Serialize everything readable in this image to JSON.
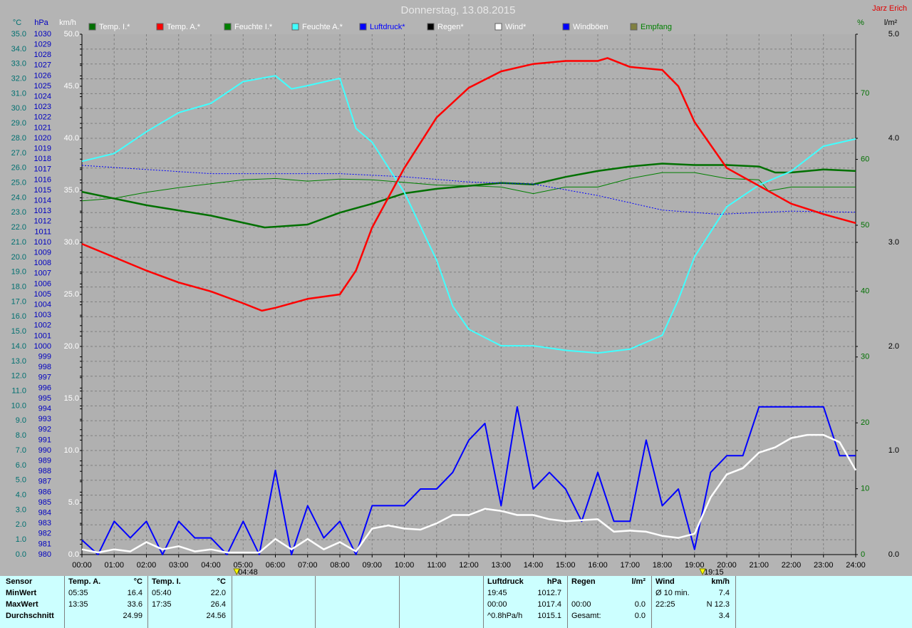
{
  "chart_data": {
    "type": "line",
    "title": "Donnerstag, 13.08.2015",
    "author": "Jarz Erich",
    "xlim": [
      0,
      24
    ],
    "xticks": [
      {
        "value": 0,
        "label": "00:00"
      },
      {
        "value": 1,
        "label": "01:00"
      },
      {
        "value": 2,
        "label": "02:00"
      },
      {
        "value": 3,
        "label": "03:00"
      },
      {
        "value": 4,
        "label": "04:00"
      },
      {
        "value": 5,
        "label": "05:00"
      },
      {
        "value": 6,
        "label": "06:00"
      },
      {
        "value": 7,
        "label": "07:00"
      },
      {
        "value": 8,
        "label": "08:00"
      },
      {
        "value": 9,
        "label": "09:00"
      },
      {
        "value": 10,
        "label": "10:00"
      },
      {
        "value": 11,
        "label": "11:00"
      },
      {
        "value": 12,
        "label": "12:00"
      },
      {
        "value": 13,
        "label": "13:00"
      },
      {
        "value": 14,
        "label": "14:00"
      },
      {
        "value": 15,
        "label": "15:00"
      },
      {
        "value": 16,
        "label": "16:00"
      },
      {
        "value": 17,
        "label": "17:00"
      },
      {
        "value": 18,
        "label": "18:00"
      },
      {
        "value": 19,
        "label": "19:00"
      },
      {
        "value": 20,
        "label": "20:00"
      },
      {
        "value": 21,
        "label": "21:00"
      },
      {
        "value": 22,
        "label": "22:00"
      },
      {
        "value": 23,
        "label": "23:00"
      },
      {
        "value": 24,
        "label": "24:00"
      }
    ],
    "sun_markers": [
      {
        "value": 4.8,
        "label": "04:48"
      },
      {
        "value": 19.25,
        "label": "19:15"
      }
    ],
    "grid": true,
    "axes": {
      "temp": {
        "label": "°C",
        "side": "left",
        "color": "#007070",
        "lim": [
          0,
          35
        ],
        "ticks": [
          {
            "value": 0,
            "label": "0.0"
          },
          {
            "value": 1,
            "label": "1.0"
          },
          {
            "value": 2,
            "label": "2.0"
          },
          {
            "value": 3,
            "label": "3.0"
          },
          {
            "value": 4,
            "label": "4.0"
          },
          {
            "value": 5,
            "label": "5.0"
          },
          {
            "value": 6,
            "label": "6.0"
          },
          {
            "value": 7,
            "label": "7.0"
          },
          {
            "value": 8,
            "label": "8.0"
          },
          {
            "value": 9,
            "label": "9.0"
          },
          {
            "value": 10,
            "label": "10.0"
          },
          {
            "value": 11,
            "label": "11.0"
          },
          {
            "value": 12,
            "label": "12.0"
          },
          {
            "value": 13,
            "label": "13.0"
          },
          {
            "value": 14,
            "label": "14.0"
          },
          {
            "value": 15,
            "label": "15.0"
          },
          {
            "value": 16,
            "label": "16.0"
          },
          {
            "value": 17,
            "label": "17.0"
          },
          {
            "value": 18,
            "label": "18.0"
          },
          {
            "value": 19,
            "label": "19.0"
          },
          {
            "value": 20,
            "label": "20.0"
          },
          {
            "value": 21,
            "label": "21.0"
          },
          {
            "value": 22,
            "label": "22.0"
          },
          {
            "value": 23,
            "label": "23.0"
          },
          {
            "value": 24,
            "label": "24.0"
          },
          {
            "value": 25,
            "label": "25.0"
          },
          {
            "value": 26,
            "label": "26.0"
          },
          {
            "value": 27,
            "label": "27.0"
          },
          {
            "value": 28,
            "label": "28.0"
          },
          {
            "value": 29,
            "label": "29.0"
          },
          {
            "value": 30,
            "label": "30.0"
          },
          {
            "value": 31,
            "label": "31.0"
          },
          {
            "value": 32,
            "label": "32.0"
          },
          {
            "value": 33,
            "label": "33.0"
          },
          {
            "value": 34,
            "label": "34.0"
          },
          {
            "value": 35,
            "label": "35.0"
          }
        ]
      },
      "hpa": {
        "label": "hPa",
        "side": "left",
        "color": "#0000c0",
        "lim": [
          980,
          1030
        ],
        "ticks": [
          980,
          981,
          982,
          983,
          984,
          985,
          986,
          987,
          988,
          989,
          990,
          991,
          992,
          993,
          994,
          995,
          996,
          997,
          998,
          999,
          1000,
          1001,
          1002,
          1003,
          1004,
          1005,
          1006,
          1007,
          1008,
          1009,
          1010,
          1011,
          1012,
          1013,
          1014,
          1015,
          1016,
          1017,
          1018,
          1019,
          1020,
          1021,
          1022,
          1023,
          1024,
          1025,
          1026,
          1027,
          1028,
          1029,
          1030
        ]
      },
      "wind": {
        "label": "km/h",
        "side": "left",
        "color": "#ffffff",
        "lim": [
          0,
          50
        ],
        "ticks": [
          {
            "value": 0,
            "label": "0.0"
          },
          {
            "value": 5,
            "label": "5.0"
          },
          {
            "value": 10,
            "label": "10.0"
          },
          {
            "value": 15,
            "label": "15.0"
          },
          {
            "value": 20,
            "label": "20.0"
          },
          {
            "value": 25,
            "label": "25.0"
          },
          {
            "value": 30,
            "label": "30.0"
          },
          {
            "value": 35,
            "label": "35.0"
          },
          {
            "value": 40,
            "label": "40.0"
          },
          {
            "value": 45,
            "label": "45.0"
          },
          {
            "value": 50,
            "label": "50.0"
          }
        ]
      },
      "hum": {
        "label": "%",
        "side": "right",
        "color": "#007000",
        "lim": [
          0,
          79
        ],
        "ticks": [
          0,
          10,
          20,
          30,
          40,
          50,
          60,
          70
        ]
      },
      "rain": {
        "label": "l/m²",
        "side": "right",
        "color": "#000000",
        "lim": [
          0,
          5
        ],
        "ticks": [
          {
            "value": 0,
            "label": "0.0"
          },
          {
            "value": 1,
            "label": "1.0"
          },
          {
            "value": 2,
            "label": "2.0"
          },
          {
            "value": 3,
            "label": "3.0"
          },
          {
            "value": 4,
            "label": "4.0"
          },
          {
            "value": 5,
            "label": "5.0"
          }
        ]
      }
    },
    "series": [
      {
        "name": "Temp. I.*",
        "color": "#007000",
        "axis": "temp",
        "width": 2.5,
        "x": [
          0,
          2,
          4,
          5.67,
          7,
          8,
          9,
          10,
          11,
          12,
          13,
          14,
          15,
          16,
          17,
          18,
          19,
          20,
          21,
          21.5,
          22,
          23,
          24
        ],
        "values": [
          24.4,
          23.5,
          22.8,
          22.0,
          22.2,
          23.0,
          23.6,
          24.3,
          24.6,
          24.8,
          25.0,
          24.9,
          25.4,
          25.8,
          26.1,
          26.3,
          26.2,
          26.2,
          26.1,
          25.7,
          25.7,
          25.9,
          25.8
        ]
      },
      {
        "name": "Temp. A.*",
        "color": "#ff0000",
        "axis": "temp",
        "width": 2.5,
        "x": [
          0,
          1,
          2,
          3,
          4,
          5,
          5.58,
          6,
          7,
          8,
          8.5,
          9,
          10,
          11,
          12,
          13,
          14,
          15,
          16,
          16.3,
          17,
          18,
          18.5,
          19,
          20,
          21,
          22,
          23,
          24
        ],
        "values": [
          20.9,
          20.0,
          19.1,
          18.3,
          17.7,
          16.9,
          16.4,
          16.6,
          17.2,
          17.5,
          19.1,
          22.0,
          26.0,
          29.4,
          31.4,
          32.5,
          33.0,
          33.2,
          33.2,
          33.4,
          32.8,
          32.6,
          31.5,
          29.1,
          26.0,
          24.8,
          23.6,
          22.9,
          22.3
        ]
      },
      {
        "name": "Feuchte I.*",
        "color": "#008000",
        "axis": "hum",
        "width": 1,
        "x": [
          0,
          1,
          2,
          3,
          4,
          5,
          6,
          7,
          8,
          9,
          10,
          11,
          12,
          13,
          14,
          15,
          16,
          17,
          18,
          19,
          20,
          21,
          21.3,
          22,
          23,
          24
        ],
        "values": [
          53.7,
          54.1,
          55.0,
          55.7,
          56.3,
          56.9,
          57.1,
          56.7,
          57.0,
          56.9,
          56.5,
          56.1,
          56.0,
          55.8,
          54.8,
          55.8,
          55.8,
          57.1,
          58.0,
          58.0,
          57.1,
          56.9,
          55.2,
          55.8,
          55.8,
          55.8
        ]
      },
      {
        "name": "Feuchte A.*",
        "color": "#40ffff",
        "axis": "hum",
        "width": 2,
        "x": [
          0,
          1,
          2,
          3,
          4,
          5,
          6,
          6.5,
          7,
          8,
          8.5,
          9,
          10,
          11,
          11.5,
          12,
          13,
          14,
          15,
          16,
          17,
          18,
          18.5,
          19,
          20,
          21,
          22,
          23,
          24
        ],
        "values": [
          59.7,
          60.9,
          64.2,
          67.1,
          68.5,
          71.8,
          72.7,
          70.7,
          71.2,
          72.3,
          64.7,
          62.6,
          55.0,
          44.7,
          37.7,
          34.2,
          31.7,
          31.7,
          31.0,
          30.6,
          31.2,
          33.3,
          38.7,
          45.2,
          52.8,
          56.1,
          58.2,
          62.0,
          63.1
        ]
      },
      {
        "name": "Luftdruck*",
        "color": "#0000ff",
        "axis": "hpa",
        "width": 1,
        "dashed": true,
        "x": [
          0,
          2,
          4,
          6,
          8,
          10,
          12,
          14,
          16,
          18,
          19.75,
          22,
          24
        ],
        "values": [
          1017.4,
          1017.0,
          1016.6,
          1016.6,
          1016.6,
          1016.3,
          1015.8,
          1015.6,
          1014.5,
          1013.1,
          1012.7,
          1013.0,
          1012.9
        ]
      },
      {
        "name": "Regen*",
        "color": "#000000",
        "axis": "rain"
      },
      {
        "name": "Wind*",
        "color": "#ffffff",
        "axis": "wind",
        "width": 2.5,
        "x": [
          0,
          0.5,
          1,
          1.5,
          2,
          2.5,
          3,
          3.5,
          4,
          4.5,
          5,
          5.5,
          6,
          6.5,
          7,
          7.5,
          8,
          8.5,
          9,
          9.5,
          10,
          10.5,
          11,
          11.5,
          12,
          12.5,
          13,
          13.5,
          14,
          14.5,
          15,
          15.5,
          16,
          16.5,
          17,
          17.5,
          18,
          18.5,
          19,
          19.5,
          20,
          20.5,
          21,
          21.5,
          22,
          22.5,
          23,
          23.5,
          24
        ],
        "values": [
          0.5,
          0.2,
          0.5,
          0.3,
          1.2,
          0.5,
          0.8,
          0.3,
          0.5,
          0.2,
          0.2,
          0.2,
          1.5,
          0.5,
          1.5,
          0.5,
          1.2,
          0.3,
          2.5,
          2.8,
          2.5,
          2.4,
          3.0,
          3.8,
          3.8,
          4.4,
          4.2,
          3.8,
          3.8,
          3.4,
          3.2,
          3.3,
          3.4,
          2.2,
          2.3,
          2.2,
          1.8,
          1.6,
          2.0,
          5.5,
          7.7,
          8.3,
          9.8,
          10.3,
          11.2,
          11.5,
          11.5,
          10.8,
          8.1
        ]
      },
      {
        "name": "Windböen",
        "color": "#0000ff",
        "axis": "wind",
        "width": 2,
        "x": [
          0,
          0.5,
          1,
          1.5,
          2,
          2.5,
          3,
          3.5,
          4,
          4.5,
          5,
          5.5,
          6,
          6.5,
          7,
          7.5,
          8,
          8.5,
          9,
          9.5,
          10,
          10.5,
          11,
          11.5,
          12,
          12.5,
          13,
          13.5,
          14,
          14.5,
          15,
          15.5,
          16,
          16.5,
          17,
          17.5,
          18,
          18.5,
          19,
          19.5,
          20,
          20.5,
          21,
          21.5,
          22,
          22.5,
          23,
          23.5,
          24
        ],
        "values": [
          1.4,
          0,
          3.2,
          1.6,
          3.2,
          0,
          3.2,
          1.6,
          1.6,
          0,
          3.2,
          0,
          8.1,
          0,
          4.7,
          1.6,
          3.2,
          0,
          4.7,
          4.7,
          4.7,
          6.3,
          6.3,
          7.9,
          11.0,
          12.6,
          4.7,
          14.2,
          6.3,
          7.9,
          6.3,
          3.2,
          7.9,
          3.2,
          3.2,
          11.0,
          4.7,
          6.3,
          0.5,
          7.9,
          9.5,
          9.5,
          14.2,
          14.2,
          14.2,
          14.2,
          14.2,
          9.5,
          9.5
        ]
      },
      {
        "name": "Empfang",
        "color": "#808040",
        "axis": "hum"
      }
    ]
  },
  "stats": {
    "row_labels": [
      "Sensor",
      "MinWert",
      "MaxWert",
      "Durchschnitt"
    ],
    "columns": [
      {
        "title": "Temp. A.",
        "unit": "°C",
        "rows": [
          [
            "05:35",
            "16.4"
          ],
          [
            "13:35",
            "33.6"
          ],
          [
            null,
            "24.99"
          ]
        ]
      },
      {
        "title": "Temp. I.",
        "unit": "°C",
        "rows": [
          [
            "05:40",
            "22.0"
          ],
          [
            "17:35",
            "26.4"
          ],
          [
            null,
            "24.56"
          ]
        ]
      },
      {
        "title": "Luftdruck",
        "unit": "hPa",
        "rows": [
          [
            "19:45",
            "1012.7"
          ],
          [
            "00:00",
            "1017.4"
          ],
          [
            "^0.8hPa/h",
            "1015.1"
          ]
        ]
      },
      {
        "title": "Regen",
        "unit": "l/m²",
        "rows": [
          [
            null,
            null
          ],
          [
            "00:00",
            "0.0"
          ],
          [
            "Gesamt:",
            "0.0"
          ]
        ]
      },
      {
        "title": "Wind",
        "unit": "km/h",
        "rows": [
          [
            "Ø 10 min.",
            "7.4"
          ],
          [
            "22:25",
            "N 12.3"
          ],
          [
            null,
            "3.4"
          ]
        ]
      }
    ]
  }
}
